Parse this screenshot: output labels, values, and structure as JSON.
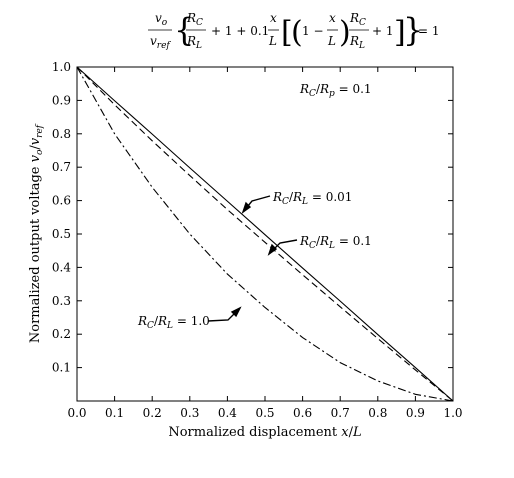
{
  "chart_data": {
    "type": "line",
    "equation": {
      "lhs_num": "v",
      "lhs_num_sub": "o",
      "lhs_den": "v",
      "lhs_den_sub": "ref",
      "rc": "R",
      "rc_sub": "C",
      "rl": "R",
      "rl_sub": "L",
      "plus_one": "+ 1 + 0.1",
      "x": "x",
      "L": "L",
      "one_minus": "1 −",
      "plus_one_end": "+ 1",
      "equals": "= 1"
    },
    "xlabel": "Normalized displacement x/L",
    "ylabel": "Normalized output voltage v_o/v_ref",
    "xlim": [
      0.0,
      1.0
    ],
    "ylim": [
      0.0,
      1.0
    ],
    "x_ticks": [
      "0.0",
      "0.1",
      "0.2",
      "0.3",
      "0.4",
      "0.5",
      "0.6",
      "0.7",
      "0.8",
      "0.9",
      "1.0"
    ],
    "y_ticks": [
      "0.1",
      "0.2",
      "0.3",
      "0.4",
      "0.5",
      "0.6",
      "0.7",
      "0.8",
      "0.9",
      "1.0"
    ],
    "grid": false,
    "parameter_label": "R_C/R_p = 0.1",
    "series": [
      {
        "name": "R_C/R_L = 0.01",
        "style": "solid",
        "x": [
          0.0,
          0.1,
          0.2,
          0.3,
          0.4,
          0.5,
          0.6,
          0.7,
          0.8,
          0.9,
          1.0
        ],
        "y": [
          1.0,
          0.899,
          0.799,
          0.698,
          0.598,
          0.498,
          0.398,
          0.299,
          0.199,
          0.1,
          0.0
        ]
      },
      {
        "name": "R_C/R_L = 0.1",
        "style": "dashed",
        "x": [
          0.0,
          0.1,
          0.2,
          0.3,
          0.4,
          0.5,
          0.6,
          0.7,
          0.8,
          0.9,
          1.0
        ],
        "y": [
          1.0,
          0.887,
          0.779,
          0.675,
          0.573,
          0.475,
          0.378,
          0.282,
          0.187,
          0.093,
          0.0
        ]
      },
      {
        "name": "R_C/R_L = 1.0",
        "style": "dashdot",
        "x": [
          0.0,
          0.1,
          0.2,
          0.3,
          0.4,
          0.5,
          0.6,
          0.7,
          0.8,
          0.9,
          1.0
        ],
        "y": [
          1.0,
          0.8,
          0.64,
          0.5,
          0.38,
          0.28,
          0.19,
          0.115,
          0.06,
          0.02,
          0.0
        ]
      }
    ]
  }
}
